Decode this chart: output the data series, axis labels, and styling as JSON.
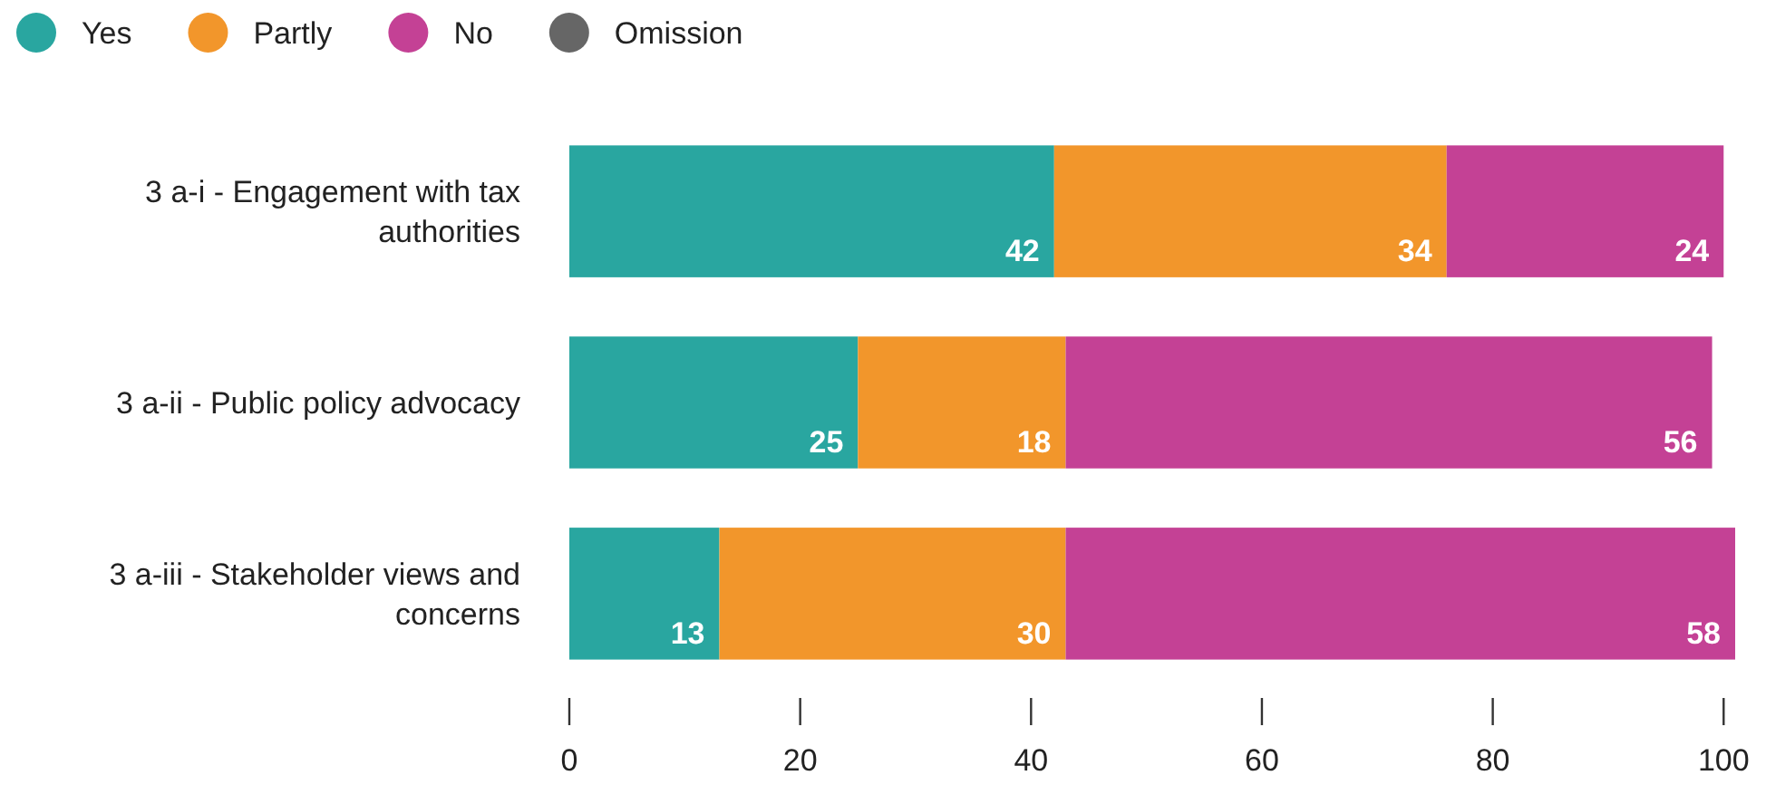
{
  "chart_data": {
    "type": "bar",
    "orientation": "horizontal",
    "stacked": true,
    "categories": [
      "3 a-i - Engagement with tax authorities",
      "3 a-ii - Public policy advocacy",
      "3 a-iii - Stakeholder views and concerns"
    ],
    "series": [
      {
        "name": "Yes",
        "color": "#29a6a0",
        "values": [
          42,
          25,
          13
        ]
      },
      {
        "name": "Partly",
        "color": "#f2962b",
        "values": [
          34,
          18,
          30
        ]
      },
      {
        "name": "No",
        "color": "#c44195",
        "values": [
          24,
          56,
          58
        ]
      },
      {
        "name": "Omission",
        "color": "#666666",
        "values": [
          null,
          null,
          null
        ]
      }
    ],
    "xlim": [
      0,
      101
    ],
    "xticks": [
      0,
      20,
      40,
      60,
      80,
      100
    ],
    "data_labels": true,
    "legend": "top",
    "grid": false
  }
}
